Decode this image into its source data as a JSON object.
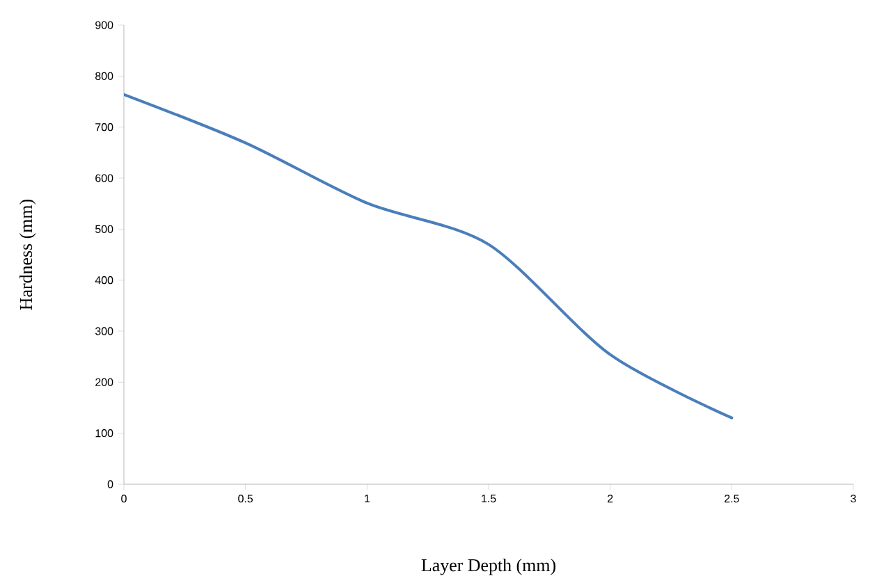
{
  "chart_data": {
    "type": "line",
    "xlabel": "Layer Depth (mm)",
    "ylabel": "Hardness (mm)",
    "x": [
      0,
      0.5,
      1,
      1.5,
      2,
      2.5
    ],
    "series": [
      {
        "color": "#4a7ebb",
        "values": [
          764,
          669,
          551,
          470,
          254,
          130
        ]
      }
    ],
    "xlim": [
      0,
      3
    ],
    "xticks": [
      0,
      0.5,
      1,
      1.5,
      2,
      2.5,
      3
    ],
    "ylim": [
      0,
      900
    ],
    "yticks": [
      0,
      100,
      200,
      300,
      400,
      500,
      600,
      700,
      800,
      900
    ],
    "grid": false,
    "legend": false,
    "marker": "none",
    "line_style": "solid"
  }
}
